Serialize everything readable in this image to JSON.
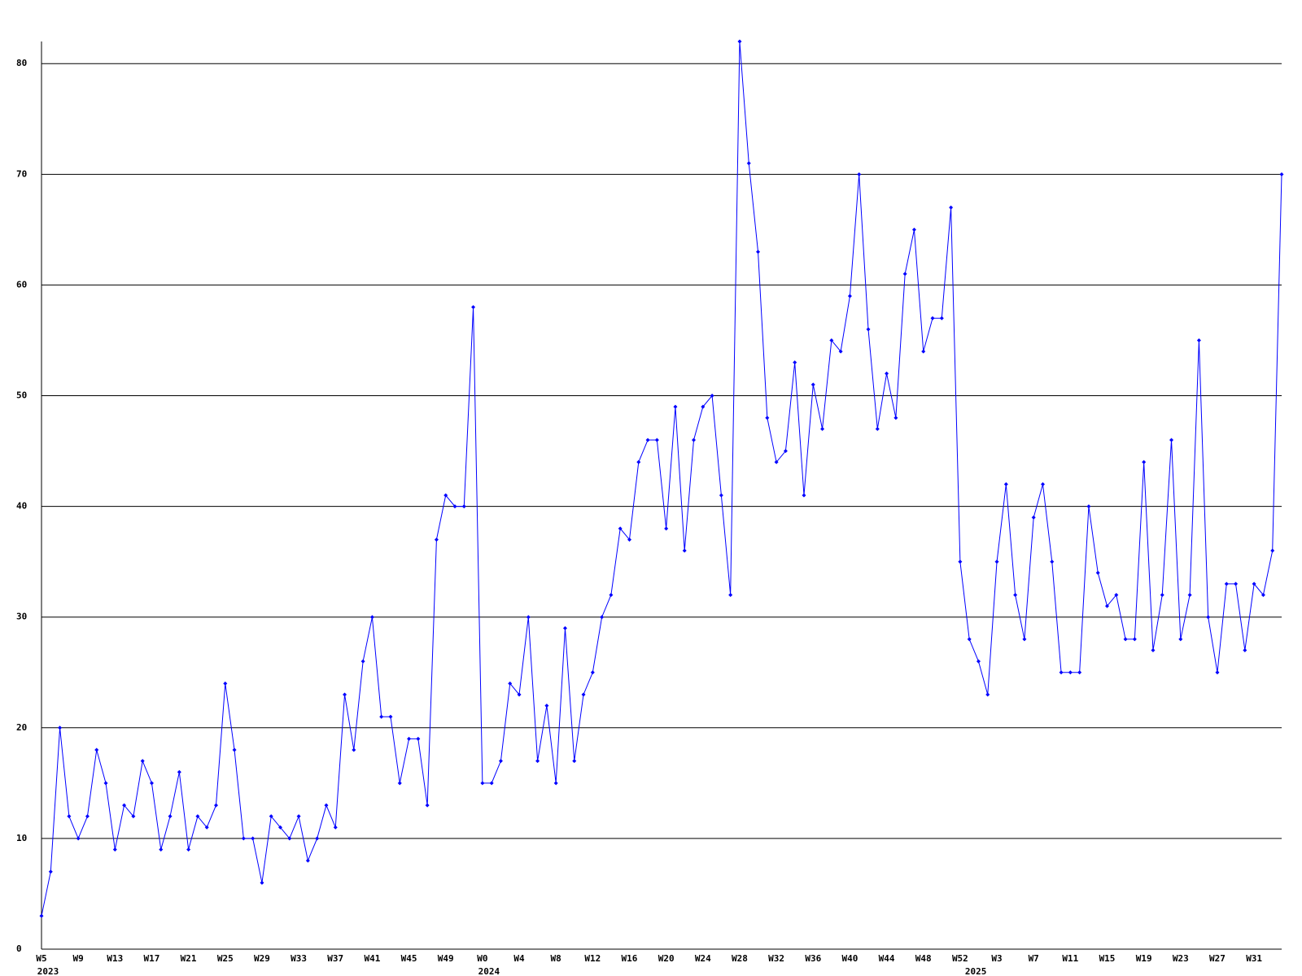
{
  "chart_data": {
    "type": "line",
    "categories": [
      "W5",
      null,
      null,
      null,
      "W9",
      null,
      null,
      null,
      "W13",
      null,
      null,
      null,
      "W17",
      null,
      null,
      null,
      "W21",
      null,
      null,
      null,
      "W25",
      null,
      null,
      null,
      "W29",
      null,
      null,
      null,
      "W33",
      null,
      null,
      null,
      "W37",
      null,
      null,
      null,
      "W41",
      null,
      null,
      null,
      "W45",
      null,
      null,
      null,
      "W49",
      null,
      null,
      null,
      "W0",
      null,
      null,
      null,
      "W4",
      null,
      null,
      null,
      "W8",
      null,
      null,
      null,
      "W12",
      null,
      null,
      null,
      "W16",
      null,
      null,
      null,
      "W20",
      null,
      null,
      null,
      "W24",
      null,
      null,
      null,
      "W28",
      null,
      null,
      null,
      "W32",
      null,
      null,
      null,
      "W36",
      null,
      null,
      null,
      "W40",
      null,
      null,
      null,
      "W44",
      null,
      null,
      null,
      "W48",
      null,
      null,
      null,
      "W52",
      null,
      null,
      null,
      "W3",
      null,
      null,
      null,
      "W7",
      null,
      null,
      null,
      "W11",
      null,
      null,
      null,
      "W15",
      null,
      null,
      null,
      "W19",
      null,
      null,
      null,
      "W23",
      null,
      null,
      null,
      "W27",
      null,
      null,
      null,
      "W31",
      null,
      null,
      null
    ],
    "years": [
      "2023",
      null,
      null,
      null,
      null,
      null,
      null,
      null,
      null,
      null,
      null,
      null,
      null,
      null,
      null,
      null,
      null,
      null,
      null,
      null,
      null,
      null,
      null,
      null,
      null,
      null,
      null,
      null,
      null,
      null,
      null,
      null,
      null,
      null,
      null,
      null,
      null,
      null,
      null,
      null,
      null,
      null,
      null,
      null,
      null,
      null,
      null,
      null,
      "2024",
      null,
      null,
      null,
      null,
      null,
      null,
      null,
      null,
      null,
      null,
      null,
      null,
      null,
      null,
      null,
      null,
      null,
      null,
      null,
      null,
      null,
      null,
      null,
      null,
      null,
      null,
      null,
      null,
      null,
      null,
      null,
      null,
      null,
      null,
      null,
      null,
      null,
      null,
      null,
      null,
      null,
      null,
      null,
      null,
      null,
      null,
      null,
      null,
      null,
      null,
      null,
      null,
      "2025",
      null,
      null,
      null,
      null,
      null,
      null,
      null,
      null,
      null,
      null,
      null,
      null,
      null,
      null,
      null,
      null,
      null,
      null,
      null,
      null,
      null,
      null,
      null,
      null,
      null,
      null,
      null,
      null,
      null,
      null,
      null,
      null,
      null,
      null
    ],
    "series": [
      {
        "color": "#0000ff",
        "values": [
          3,
          7,
          20,
          12,
          10,
          12,
          18,
          15,
          9,
          13,
          12,
          17,
          15,
          9,
          12,
          16,
          9,
          12,
          11,
          13,
          24,
          18,
          10,
          10,
          6,
          12,
          11,
          10,
          12,
          8,
          10,
          13,
          11,
          23,
          18,
          26,
          30,
          21,
          21,
          15,
          19,
          19,
          13,
          37,
          41,
          40,
          40,
          58,
          15,
          15,
          17,
          24,
          23,
          30,
          17,
          22,
          15,
          29,
          17,
          23,
          25,
          30,
          32,
          38,
          37,
          44,
          46,
          46,
          38,
          49,
          36,
          46,
          49,
          50,
          41,
          32,
          82,
          71,
          63,
          48,
          44,
          45,
          53,
          41,
          51,
          47,
          55,
          54,
          59,
          70,
          56,
          47,
          52,
          48,
          61,
          65,
          54,
          57,
          57,
          67,
          35,
          28,
          26,
          23,
          35,
          42,
          32,
          28,
          39,
          42,
          35,
          25,
          25,
          25,
          40,
          34,
          31,
          32,
          28,
          28,
          44,
          27,
          32,
          46,
          28,
          32,
          55,
          30,
          25,
          33,
          33,
          27,
          33,
          32,
          36,
          70
        ]
      }
    ],
    "ylim": [
      0,
      82
    ],
    "yticks": [
      0,
      10,
      20,
      30,
      40,
      50,
      60,
      70,
      80
    ],
    "grid": true
  }
}
